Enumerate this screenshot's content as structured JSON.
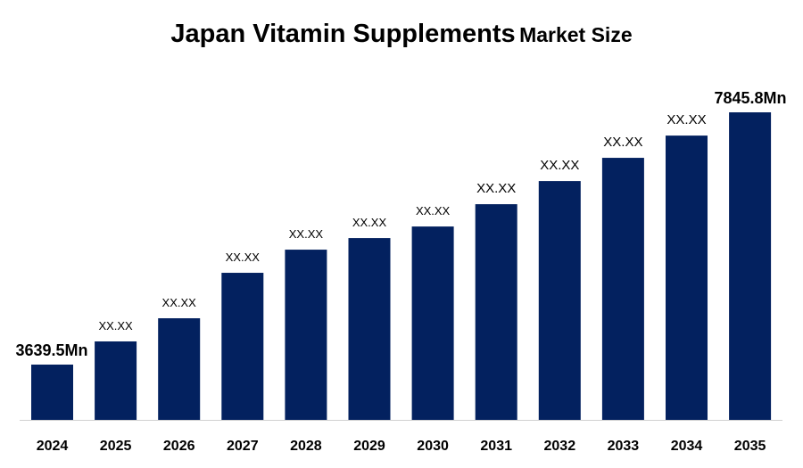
{
  "chart_data": {
    "type": "bar",
    "title": "Japan Vitamin Supplements",
    "subtitle": "Market Size",
    "xlabel": "",
    "ylabel": "",
    "categories": [
      "2024",
      "2025",
      "2026",
      "2027",
      "2028",
      "2029",
      "2030",
      "2031",
      "2032",
      "2033",
      "2034",
      "2035"
    ],
    "values": [
      3639.5,
      4026,
      4412,
      5170,
      5556,
      5749,
      5942,
      6314,
      6700,
      7087,
      7458,
      7845.8
    ],
    "data_labels": [
      "3639.5Mn",
      "XX.XX",
      "XX.XX",
      "XX.XX",
      "XX.XX",
      "XX.XX",
      "XX.XX",
      "XX.XX",
      "XX.XX",
      "XX.XX",
      "XX.XX",
      "7845.8Mn"
    ],
    "ylim": [
      2718,
      7845.8
    ],
    "grid": false,
    "legend": "none",
    "bar_color": "#03215F"
  }
}
